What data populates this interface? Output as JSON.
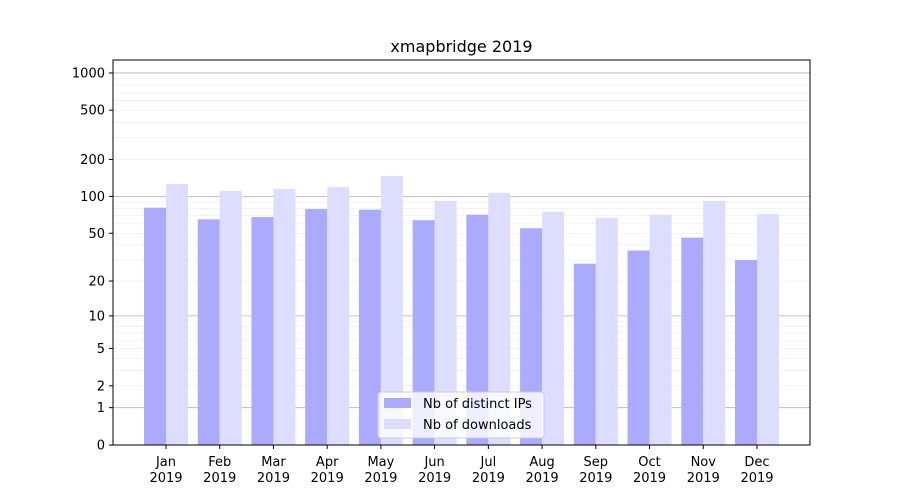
{
  "chart_data": {
    "type": "bar",
    "title": "xmapbridge 2019",
    "xlabel": "",
    "ylabel": "",
    "yscale": "log(1+y)",
    "ylim": [
      0,
      1200
    ],
    "yticks": [
      0,
      1,
      2,
      5,
      10,
      20,
      50,
      100,
      200,
      500,
      1000
    ],
    "grid": true,
    "legend_position": "lower-center",
    "categories": [
      "Jan\n2019",
      "Feb\n2019",
      "Mar\n2019",
      "Apr\n2019",
      "May\n2019",
      "Jun\n2019",
      "Jul\n2019",
      "Aug\n2019",
      "Sep\n2019",
      "Oct\n2019",
      "Nov\n2019",
      "Dec\n2019"
    ],
    "series": [
      {
        "name": "Nb of distinct IPs",
        "color": "#aaaaff",
        "values": [
          81,
          65,
          68,
          79,
          78,
          64,
          71,
          55,
          28,
          36,
          46,
          30
        ]
      },
      {
        "name": "Nb of downloads",
        "color": "#ddddff",
        "values": [
          126,
          111,
          115,
          119,
          147,
          92,
          107,
          75,
          67,
          71,
          92,
          72
        ]
      }
    ]
  }
}
